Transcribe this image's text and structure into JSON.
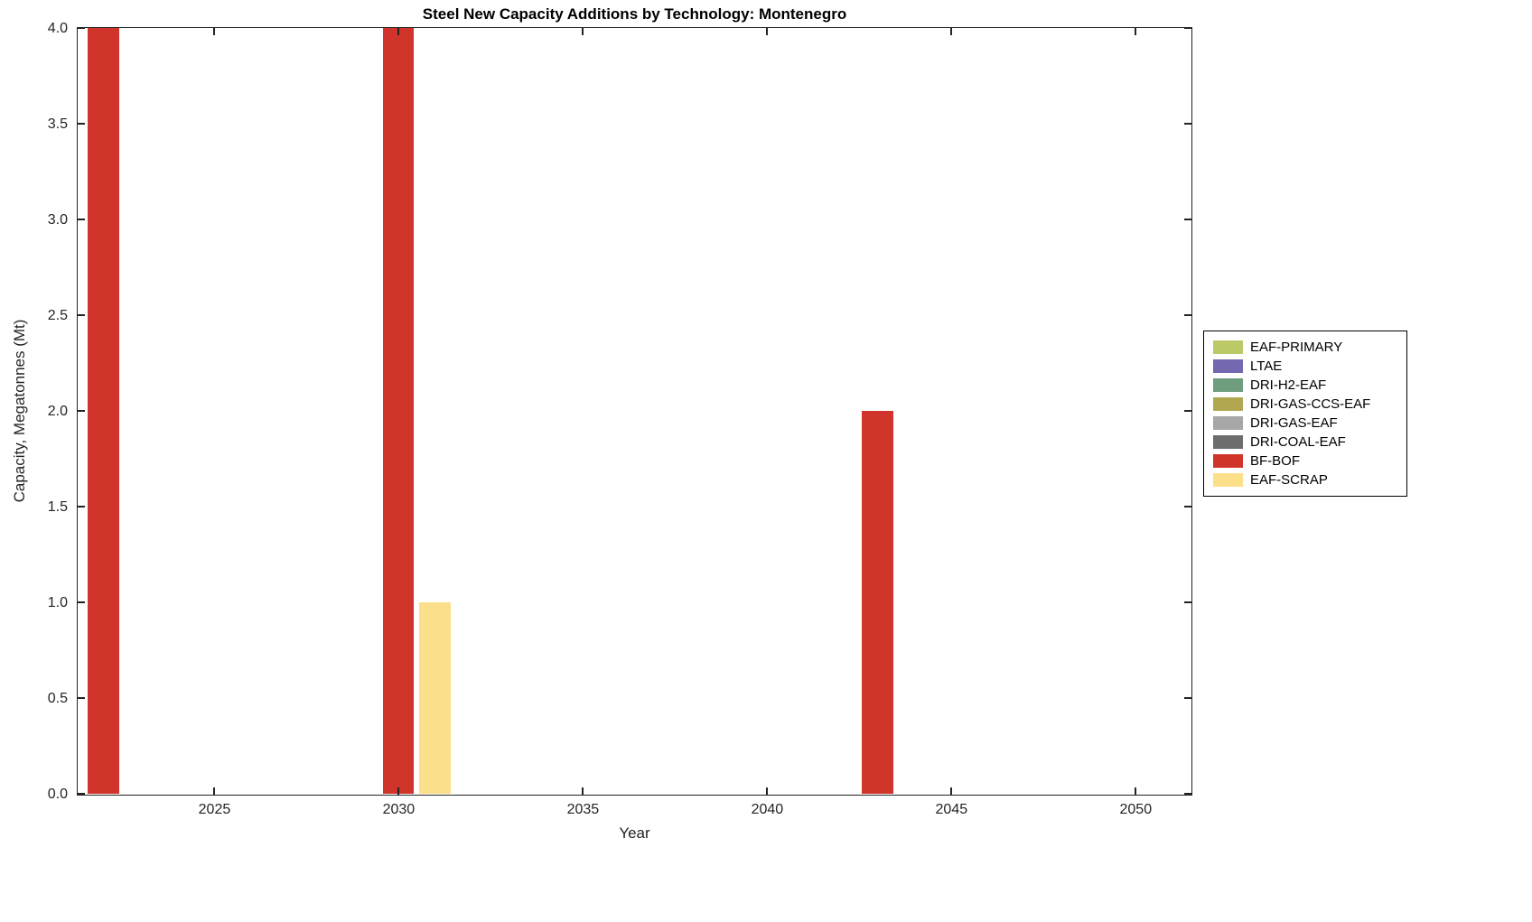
{
  "chart_data": {
    "type": "bar",
    "title": "Steel New Capacity Additions by Technology: Montenegro",
    "xlabel": "Year",
    "ylabel": "Capacity, Megatonnes (Mt)",
    "xlim": [
      2021.3,
      2051.5
    ],
    "ylim": [
      0,
      4
    ],
    "xticks": [
      2025,
      2030,
      2035,
      2040,
      2045,
      2050
    ],
    "yticks": [
      0,
      0.5,
      1,
      1.5,
      2,
      2.5,
      3,
      3.5,
      4
    ],
    "ytick_decimals": 1,
    "grid": false,
    "bar_width_years": 0.85,
    "legend_position": "right-outside",
    "series": [
      {
        "name": "EAF-PRIMARY",
        "color": "#bdc867"
      },
      {
        "name": "LTAE",
        "color": "#7468b0"
      },
      {
        "name": "DRI-H2-EAF",
        "color": "#6f9e7f"
      },
      {
        "name": "DRI-GAS-CCS-EAF",
        "color": "#b2a751"
      },
      {
        "name": "DRI-GAS-EAF",
        "color": "#a7a7a7"
      },
      {
        "name": "DRI-COAL-EAF",
        "color": "#6d6d6d"
      },
      {
        "name": "BF-BOF",
        "color": "#d0342b"
      },
      {
        "name": "EAF-SCRAP",
        "color": "#fbdf8b"
      }
    ],
    "legend_order": [
      "EAF-PRIMARY",
      "LTAE",
      "DRI-H2-EAF",
      "DRI-GAS-CCS-EAF",
      "DRI-GAS-EAF",
      "DRI-COAL-EAF",
      "BF-BOF",
      "EAF-SCRAP"
    ],
    "bars": [
      {
        "series": "BF-BOF",
        "x": 2022,
        "value": 4
      },
      {
        "series": "BF-BOF",
        "x": 2030,
        "value": 4
      },
      {
        "series": "EAF-SCRAP",
        "x": 2031,
        "value": 1
      },
      {
        "series": "BF-BOF",
        "x": 2043,
        "value": 2
      }
    ]
  }
}
